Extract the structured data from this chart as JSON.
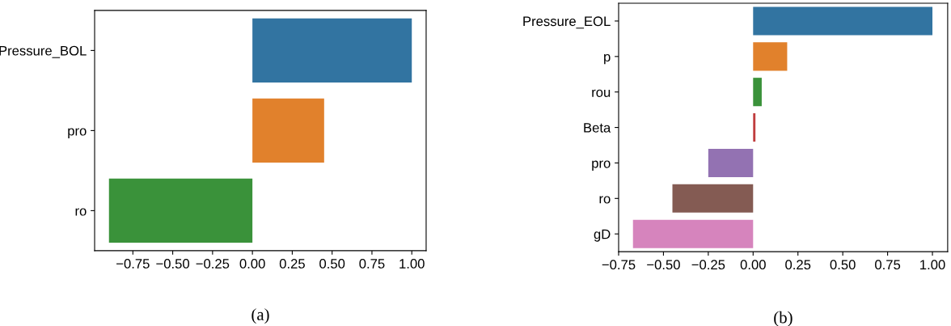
{
  "chart_data": [
    {
      "type": "bar",
      "orientation": "horizontal",
      "categories": [
        "Pressure_BOL",
        "pro",
        "ro"
      ],
      "values": [
        1.0,
        0.45,
        -0.9
      ],
      "colors": [
        "#3274a1",
        "#e1812c",
        "#3a923a"
      ],
      "xlim": [
        -0.99,
        1.09
      ],
      "xticks": [
        {
          "value": -0.75,
          "label": "−0.75"
        },
        {
          "value": -0.5,
          "label": "−0.50"
        },
        {
          "value": -0.25,
          "label": "−0.25"
        },
        {
          "value": 0,
          "label": "0.00"
        },
        {
          "value": 0.25,
          "label": "0.25"
        },
        {
          "value": 0.5,
          "label": "0.50"
        },
        {
          "value": 0.75,
          "label": "0.75"
        },
        {
          "value": 1.0,
          "label": "1.00"
        }
      ],
      "grid": false,
      "annotations": [
        "(a)"
      ]
    },
    {
      "type": "bar",
      "orientation": "horizontal",
      "categories": [
        "Pressure_EOL",
        "p",
        "rou",
        "Beta",
        "pro",
        "ro",
        "gD"
      ],
      "values": [
        1.0,
        0.19,
        0.048,
        0.013,
        -0.25,
        -0.45,
        -0.67
      ],
      "colors": [
        "#3274a1",
        "#e1812c",
        "#3a923a",
        "#c03d3e",
        "#9372b2",
        "#845b53",
        "#d684bd"
      ],
      "xlim": [
        -0.75,
        1.085
      ],
      "xticks": [
        {
          "value": -0.75,
          "label": "−0.75"
        },
        {
          "value": -0.5,
          "label": "−0.50"
        },
        {
          "value": -0.25,
          "label": "−0.25"
        },
        {
          "value": 0,
          "label": "0.00"
        },
        {
          "value": 0.25,
          "label": "0.25"
        },
        {
          "value": 0.5,
          "label": "0.50"
        },
        {
          "value": 0.75,
          "label": "0.75"
        },
        {
          "value": 1.0,
          "label": "1.00"
        }
      ],
      "grid": false,
      "annotations": [
        "(b)"
      ]
    }
  ]
}
